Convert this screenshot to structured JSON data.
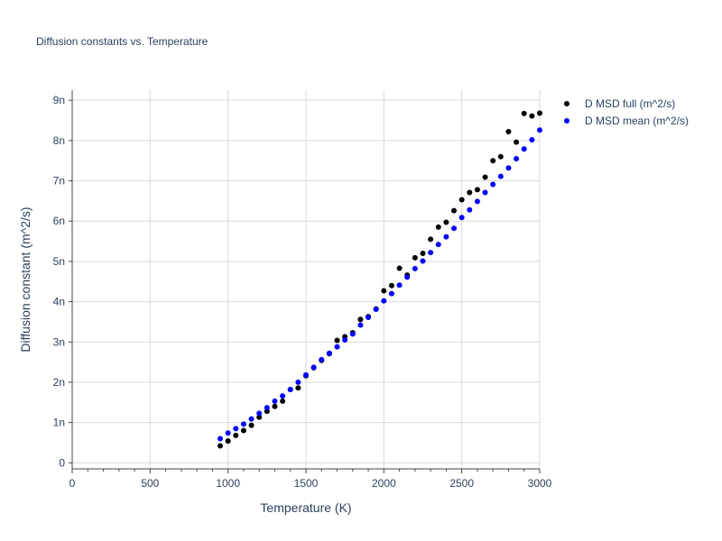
{
  "chart_data": {
    "type": "scatter",
    "title": "Diffusion constants vs. Temperature",
    "xlabel": "Temperature (K)",
    "ylabel": "Diffusion constant (m^2/s)",
    "xlim": [
      0,
      3000
    ],
    "ylim": [
      -0.15,
      9.25
    ],
    "x_ticks": [
      0,
      500,
      1000,
      1500,
      2000,
      2500,
      3000
    ],
    "x_tick_labels": [
      "0",
      "500",
      "1000",
      "1500",
      "2000",
      "2500",
      "3000"
    ],
    "y_ticks": [
      0,
      1,
      2,
      3,
      4,
      5,
      6,
      7,
      8,
      9
    ],
    "y_tick_labels": [
      "0",
      "1n",
      "2n",
      "3n",
      "4n",
      "5n",
      "6n",
      "7n",
      "8n",
      "9n"
    ],
    "grid": true,
    "legend_position": "top-right outside",
    "series": [
      {
        "name": "D MSD full (m^2/s)",
        "color": "#000000",
        "x": [
          950,
          1000,
          1050,
          1100,
          1150,
          1200,
          1250,
          1300,
          1350,
          1400,
          1450,
          1500,
          1550,
          1600,
          1650,
          1700,
          1750,
          1800,
          1850,
          1900,
          1950,
          2000,
          2050,
          2100,
          2150,
          2200,
          2250,
          2300,
          2350,
          2400,
          2450,
          2500,
          2550,
          2600,
          2650,
          2700,
          2750,
          2800,
          2850,
          2900,
          2950,
          3000
        ],
        "y": [
          0.42,
          0.54,
          0.68,
          0.8,
          0.93,
          1.13,
          1.28,
          1.4,
          1.53,
          1.82,
          1.86,
          2.16,
          2.36,
          2.54,
          2.71,
          3.04,
          3.13,
          3.23,
          3.56,
          3.63,
          3.82,
          4.27,
          4.4,
          4.83,
          4.66,
          5.09,
          5.2,
          5.55,
          5.85,
          5.97,
          6.26,
          6.53,
          6.71,
          6.78,
          7.09,
          7.5,
          7.6,
          8.22,
          7.96,
          8.67,
          8.61,
          8.68
        ]
      },
      {
        "name": "D MSD mean (m^2/s)",
        "color": "#0000ff",
        "x": [
          950,
          1000,
          1050,
          1100,
          1150,
          1200,
          1250,
          1300,
          1350,
          1400,
          1450,
          1500,
          1550,
          1600,
          1650,
          1700,
          1750,
          1800,
          1850,
          1900,
          1950,
          2000,
          2050,
          2100,
          2150,
          2200,
          2250,
          2300,
          2350,
          2400,
          2450,
          2500,
          2550,
          2600,
          2650,
          2700,
          2750,
          2800,
          2850,
          2900,
          2950,
          3000
        ],
        "y": [
          0.6,
          0.74,
          0.85,
          0.96,
          1.09,
          1.23,
          1.37,
          1.53,
          1.66,
          1.82,
          2.0,
          2.18,
          2.37,
          2.56,
          2.72,
          2.88,
          3.05,
          3.2,
          3.42,
          3.61,
          3.81,
          4.02,
          4.2,
          4.41,
          4.61,
          4.82,
          5.01,
          5.22,
          5.42,
          5.61,
          5.82,
          6.09,
          6.28,
          6.49,
          6.71,
          6.91,
          7.11,
          7.32,
          7.55,
          7.79,
          8.02,
          8.26
        ]
      }
    ]
  }
}
